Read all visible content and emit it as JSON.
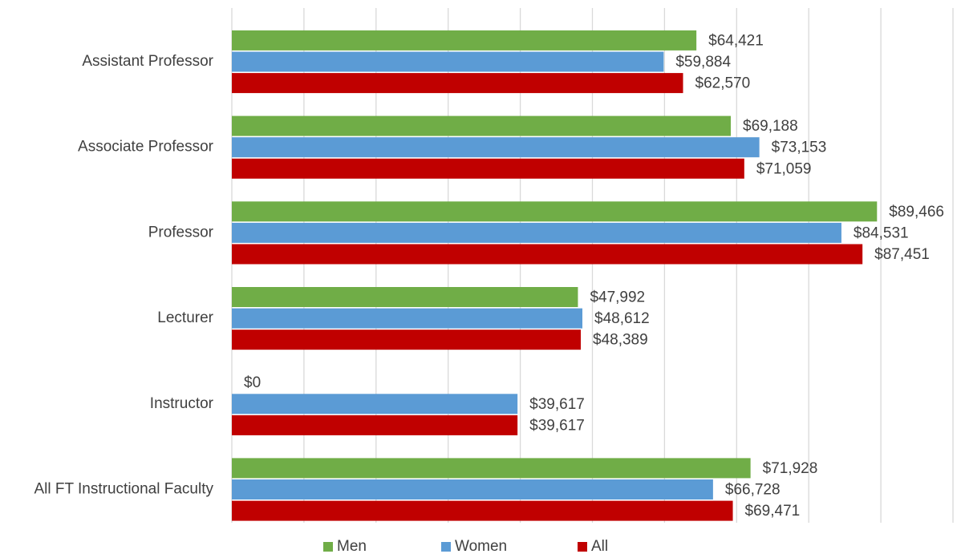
{
  "chart_data": {
    "type": "hbar",
    "categories": [
      "Assistant Professor",
      "Associate Professor",
      "Professor",
      "Lecturer",
      "Instructor",
      "All FT Instructional Faculty"
    ],
    "series": [
      {
        "name": "Men",
        "color": "#70ad47",
        "values": [
          64421,
          69188,
          89466,
          47992,
          0,
          71928
        ],
        "value_labels": [
          "$64,421",
          "$69,188",
          "$89,466",
          "$47,992",
          "$0",
          "$71,928"
        ]
      },
      {
        "name": "Women",
        "color": "#5b9bd5",
        "values": [
          59884,
          73153,
          84531,
          48612,
          39617,
          66728
        ],
        "value_labels": [
          "$59,884",
          "$73,153",
          "$84,531",
          "$48,612",
          "$39,617",
          "$66,728"
        ]
      },
      {
        "name": "All",
        "color": "#c00000",
        "values": [
          62570,
          71059,
          87451,
          48389,
          39617,
          69471
        ],
        "value_labels": [
          "$62,570",
          "$71,059",
          "$87,451",
          "$48,389",
          "$39,617",
          "$69,471"
        ]
      }
    ],
    "xlim": [
      0,
      100000
    ],
    "xticks": [
      0,
      10000,
      20000,
      30000,
      40000,
      50000,
      60000,
      70000,
      80000,
      90000,
      100000
    ],
    "grid": true,
    "legend": "bottom"
  }
}
